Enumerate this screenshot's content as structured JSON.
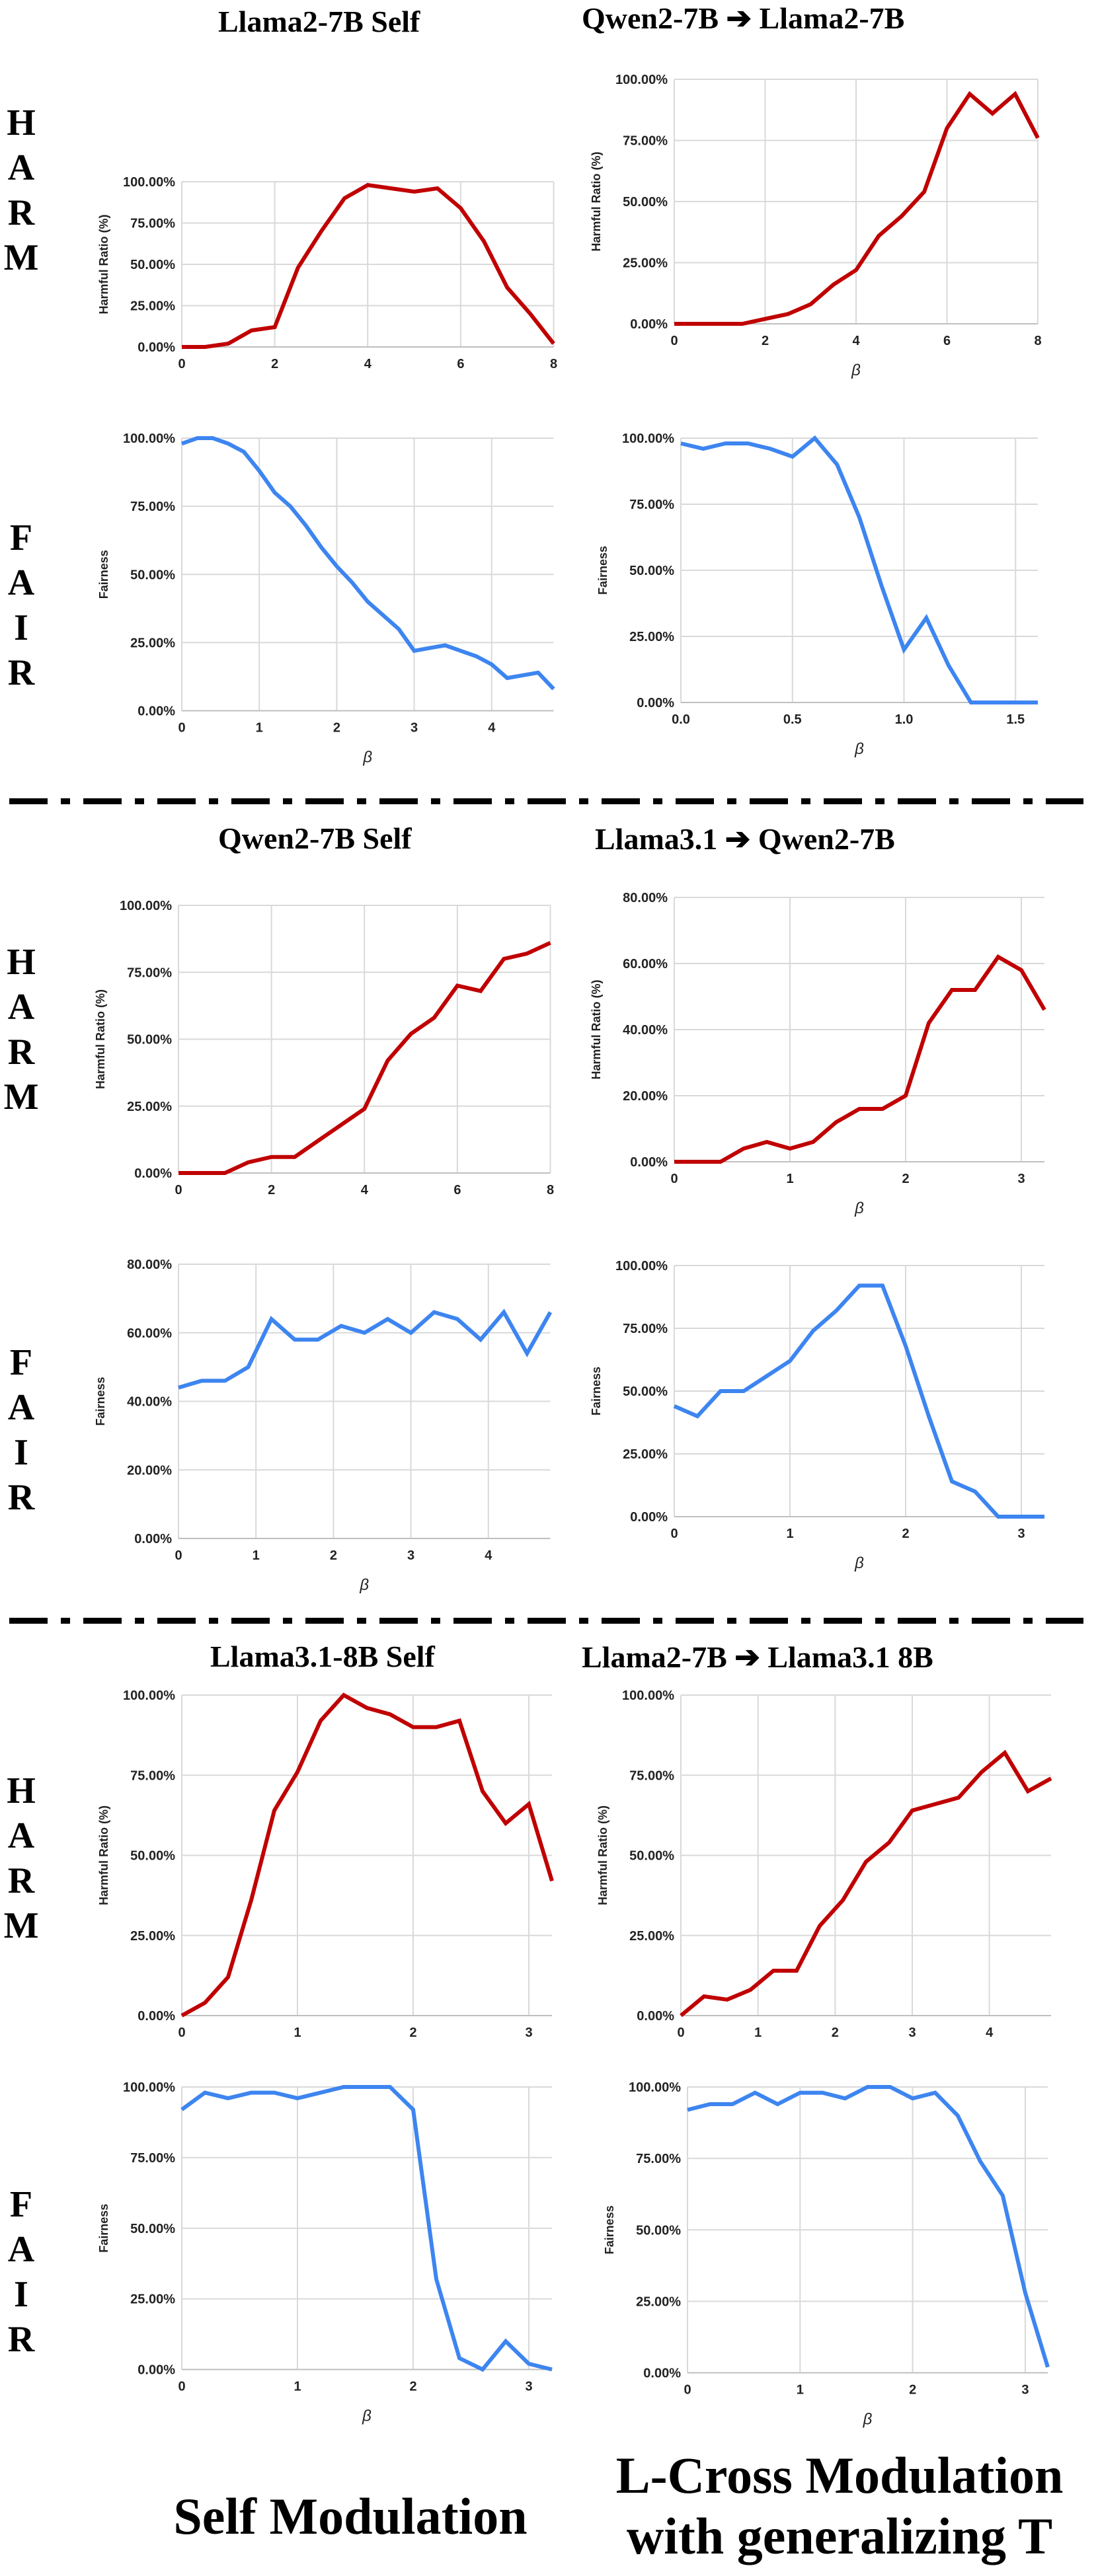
{
  "row_labels": {
    "harm": [
      "H",
      "A",
      "R",
      "M"
    ],
    "fair": [
      "F",
      "A",
      "I",
      "R"
    ]
  },
  "headers": {
    "b1_left": "Llama2-7B Self",
    "b1_right": "Qwen2-7B ➔ Llama2-7B",
    "b2_left": "Qwen2-7B Self",
    "b2_right": "Llama3.1 ➔ Qwen2-7B",
    "b3_left": "Llama3.1-8B Self",
    "b3_right": "Llama2-7B ➔ Llama3.1 8B"
  },
  "footer": {
    "left": "Self Modulation",
    "right_line1": "L-Cross Modulation",
    "right_line2": "with generalizing T"
  },
  "colors": {
    "harm": "#c00000",
    "fair": "#3d85f0",
    "grid": "#d9d9d9",
    "axis": "#bfbfbf"
  },
  "chart_data": [
    {
      "id": "c1",
      "type": "line",
      "metric": "harm",
      "xlabel": "",
      "ylabel": "Harmful Ratio (%)",
      "xlim": [
        0,
        8
      ],
      "xticks": [
        0,
        2,
        4,
        6,
        8
      ],
      "ylim": [
        0,
        100
      ],
      "yticks": [
        0,
        25,
        50,
        75,
        100
      ],
      "ytick_labels": [
        "0.00%",
        "25.00%",
        "50.00%",
        "75.00%",
        "100.00%"
      ],
      "x": [
        0,
        0.5,
        1,
        1.5,
        2,
        2.5,
        3,
        3.5,
        4,
        4.5,
        5,
        5.5,
        6,
        6.5,
        7,
        7.5,
        8
      ],
      "y": [
        0,
        0,
        2,
        10,
        12,
        48,
        70,
        90,
        98,
        96,
        94,
        96,
        84,
        64,
        36,
        20,
        2
      ]
    },
    {
      "id": "c2",
      "type": "line",
      "metric": "harm",
      "xlabel": "β",
      "ylabel": "Harmful Ratio (%)",
      "xlim": [
        0,
        8
      ],
      "xticks": [
        0,
        2,
        4,
        6,
        8
      ],
      "ylim": [
        0,
        100
      ],
      "yticks": [
        0,
        25,
        50,
        75,
        100
      ],
      "ytick_labels": [
        "0.00%",
        "25.00%",
        "50.00%",
        "75.00%",
        "100.00%"
      ],
      "x": [
        0,
        0.5,
        1,
        1.5,
        2,
        2.5,
        3,
        3.5,
        4,
        4.5,
        5,
        5.5,
        6,
        6.5,
        7,
        7.5,
        8
      ],
      "y": [
        0,
        0,
        0,
        0,
        2,
        4,
        8,
        16,
        22,
        36,
        44,
        54,
        80,
        94,
        86,
        94,
        76
      ]
    },
    {
      "id": "c3",
      "type": "line",
      "metric": "fair",
      "xlabel": "β",
      "ylabel": "Fairness",
      "xlim": [
        0,
        4.8
      ],
      "xticks": [
        0,
        1,
        2,
        3,
        4
      ],
      "ylim": [
        0,
        100
      ],
      "yticks": [
        0,
        25,
        50,
        75,
        100
      ],
      "ytick_labels": [
        "0.00%",
        "25.00%",
        "50.00%",
        "75.00%",
        "100.00%"
      ],
      "x": [
        0,
        0.2,
        0.4,
        0.6,
        0.8,
        1.0,
        1.2,
        1.4,
        1.6,
        1.8,
        2.0,
        2.2,
        2.4,
        2.6,
        2.8,
        3.0,
        3.2,
        3.4,
        3.6,
        3.8,
        4.0,
        4.2,
        4.4,
        4.6,
        4.8
      ],
      "y": [
        98,
        100,
        100,
        98,
        95,
        88,
        80,
        75,
        68,
        60,
        53,
        47,
        40,
        35,
        30,
        22,
        23,
        24,
        22,
        20,
        17,
        12,
        13,
        14,
        8
      ]
    },
    {
      "id": "c4",
      "type": "line",
      "metric": "fair",
      "xlabel": "β",
      "ylabel": "Fairness",
      "xlim": [
        0,
        1.6
      ],
      "xticks": [
        0,
        0.5,
        1,
        1.5
      ],
      "xtick_labels": [
        "0.0",
        "0.5",
        "1.0",
        "1.5"
      ],
      "ylim": [
        0,
        100
      ],
      "yticks": [
        0,
        25,
        50,
        75,
        100
      ],
      "ytick_labels": [
        "0.00%",
        "25.00%",
        "50.00%",
        "75.00%",
        "100.00%"
      ],
      "x": [
        0,
        0.1,
        0.2,
        0.3,
        0.4,
        0.5,
        0.6,
        0.7,
        0.8,
        0.9,
        1.0,
        1.1,
        1.2,
        1.3,
        1.4,
        1.5,
        1.6
      ],
      "y": [
        98,
        96,
        98,
        98,
        96,
        93,
        100,
        90,
        70,
        44,
        20,
        32,
        14,
        0,
        0,
        0,
        0
      ]
    },
    {
      "id": "c5",
      "type": "line",
      "metric": "harm",
      "xlabel": "",
      "ylabel": "Harmful Ratio (%)",
      "xlim": [
        0,
        8
      ],
      "xticks": [
        0,
        2,
        4,
        6,
        8
      ],
      "ylim": [
        0,
        100
      ],
      "yticks": [
        0,
        25,
        50,
        75,
        100
      ],
      "ytick_labels": [
        "0.00%",
        "25.00%",
        "50.00%",
        "75.00%",
        "100.00%"
      ],
      "x": [
        0,
        0.5,
        1,
        1.5,
        2,
        2.5,
        3,
        3.5,
        4,
        4.5,
        5,
        5.5,
        6,
        6.5,
        7,
        7.5,
        8
      ],
      "y": [
        0,
        0,
        0,
        4,
        6,
        6,
        12,
        18,
        24,
        42,
        52,
        58,
        70,
        68,
        80,
        82,
        86
      ]
    },
    {
      "id": "c6",
      "type": "line",
      "metric": "harm",
      "xlabel": "β",
      "ylabel": "Harmful Ratio (%)",
      "xlim": [
        0,
        3.2
      ],
      "xticks": [
        0,
        1,
        2,
        3
      ],
      "ylim": [
        0,
        80
      ],
      "yticks": [
        0,
        20,
        40,
        60,
        80
      ],
      "ytick_labels": [
        "0.00%",
        "20.00%",
        "40.00%",
        "60.00%",
        "80.00%"
      ],
      "x": [
        0,
        0.2,
        0.4,
        0.6,
        0.8,
        1.0,
        1.2,
        1.4,
        1.6,
        1.8,
        2.0,
        2.2,
        2.4,
        2.6,
        2.8,
        3.0,
        3.2
      ],
      "y": [
        0,
        0,
        0,
        4,
        6,
        4,
        6,
        12,
        16,
        16,
        20,
        42,
        52,
        52,
        62,
        58,
        46
      ]
    },
    {
      "id": "c7",
      "type": "line",
      "metric": "fair",
      "xlabel": "β",
      "ylabel": "Fairness",
      "xlim": [
        0,
        4.8
      ],
      "xticks": [
        0,
        1,
        2,
        3,
        4
      ],
      "ylim": [
        0,
        80
      ],
      "yticks": [
        0,
        20,
        40,
        60,
        80
      ],
      "ytick_labels": [
        "0.00%",
        "20.00%",
        "40.00%",
        "60.00%",
        "80.00%"
      ],
      "x": [
        0,
        0.3,
        0.6,
        0.9,
        1.2,
        1.5,
        1.8,
        2.1,
        2.4,
        2.7,
        3.0,
        3.3,
        3.6,
        3.9,
        4.2,
        4.5,
        4.8
      ],
      "y": [
        44,
        46,
        46,
        50,
        64,
        58,
        58,
        62,
        60,
        64,
        60,
        66,
        64,
        58,
        66,
        54,
        66
      ]
    },
    {
      "id": "c8",
      "type": "line",
      "metric": "fair",
      "xlabel": "β",
      "ylabel": "Fairness",
      "xlim": [
        0,
        3.2
      ],
      "xticks": [
        0,
        1,
        2,
        3
      ],
      "ylim": [
        0,
        100
      ],
      "yticks": [
        0,
        25,
        50,
        75,
        100
      ],
      "ytick_labels": [
        "0.00%",
        "25.00%",
        "50.00%",
        "75.00%",
        "100.00%"
      ],
      "x": [
        0,
        0.2,
        0.4,
        0.6,
        0.8,
        1.0,
        1.2,
        1.4,
        1.6,
        1.8,
        2.0,
        2.2,
        2.4,
        2.6,
        2.8,
        3.0,
        3.2
      ],
      "y": [
        44,
        40,
        50,
        50,
        56,
        62,
        74,
        82,
        92,
        92,
        68,
        40,
        14,
        10,
        0,
        0,
        0
      ]
    },
    {
      "id": "c9",
      "type": "line",
      "metric": "harm",
      "xlabel": "",
      "ylabel": "Harmful Ratio (%)",
      "xlim": [
        0,
        3.2
      ],
      "xticks": [
        0,
        1,
        2,
        3
      ],
      "ylim": [
        0,
        100
      ],
      "yticks": [
        0,
        25,
        50,
        75,
        100
      ],
      "ytick_labels": [
        "0.00%",
        "25.00%",
        "50.00%",
        "75.00%",
        "100.00%"
      ],
      "x": [
        0,
        0.2,
        0.4,
        0.6,
        0.8,
        1.0,
        1.2,
        1.4,
        1.6,
        1.8,
        2.0,
        2.2,
        2.4,
        2.6,
        2.8,
        3.0,
        3.2
      ],
      "y": [
        0,
        4,
        12,
        36,
        64,
        76,
        92,
        100,
        96,
        94,
        90,
        90,
        92,
        70,
        60,
        66,
        42
      ]
    },
    {
      "id": "c10",
      "type": "line",
      "metric": "harm",
      "xlabel": "",
      "ylabel": "Harmful Ratio (%)",
      "xlim": [
        0,
        4.8
      ],
      "xticks": [
        0,
        1,
        2,
        3,
        4
      ],
      "ylim": [
        0,
        100
      ],
      "yticks": [
        0,
        25,
        50,
        75,
        100
      ],
      "ytick_labels": [
        "0.00%",
        "25.00%",
        "50.00%",
        "75.00%",
        "100.00%"
      ],
      "x": [
        0,
        0.3,
        0.6,
        0.9,
        1.2,
        1.5,
        1.8,
        2.1,
        2.4,
        2.7,
        3.0,
        3.3,
        3.6,
        3.9,
        4.2,
        4.5,
        4.8
      ],
      "y": [
        0,
        6,
        5,
        8,
        14,
        14,
        28,
        36,
        48,
        54,
        64,
        66,
        68,
        76,
        82,
        70,
        74
      ]
    },
    {
      "id": "c11",
      "type": "line",
      "metric": "fair",
      "xlabel": "β",
      "ylabel": "Fairness",
      "xlim": [
        0,
        3.2
      ],
      "xticks": [
        0,
        1,
        2,
        3
      ],
      "ylim": [
        0,
        100
      ],
      "yticks": [
        0,
        25,
        50,
        75,
        100
      ],
      "ytick_labels": [
        "0.00%",
        "25.00%",
        "50.00%",
        "75.00%",
        "100.00%"
      ],
      "x": [
        0,
        0.2,
        0.4,
        0.6,
        0.8,
        1.0,
        1.2,
        1.4,
        1.6,
        1.8,
        2.0,
        2.2,
        2.4,
        2.6,
        2.8,
        3.0,
        3.2
      ],
      "y": [
        92,
        98,
        96,
        98,
        98,
        96,
        98,
        100,
        100,
        100,
        92,
        32,
        4,
        0,
        10,
        2,
        0
      ]
    },
    {
      "id": "c12",
      "type": "line",
      "metric": "fair",
      "xlabel": "β",
      "ylabel": "Fairness",
      "xlim": [
        0,
        3.2
      ],
      "xticks": [
        0,
        1,
        2,
        3
      ],
      "ylim": [
        0,
        100
      ],
      "yticks": [
        0,
        25,
        50,
        75,
        100
      ],
      "ytick_labels": [
        "0.00%",
        "25.00%",
        "50.00%",
        "75.00%",
        "100.00%"
      ],
      "x": [
        0,
        0.2,
        0.4,
        0.6,
        0.8,
        1.0,
        1.2,
        1.4,
        1.6,
        1.8,
        2.0,
        2.2,
        2.4,
        2.6,
        2.8,
        3.0,
        3.2
      ],
      "y": [
        92,
        94,
        94,
        98,
        94,
        98,
        98,
        96,
        100,
        100,
        96,
        98,
        90,
        74,
        62,
        28,
        2
      ]
    }
  ]
}
